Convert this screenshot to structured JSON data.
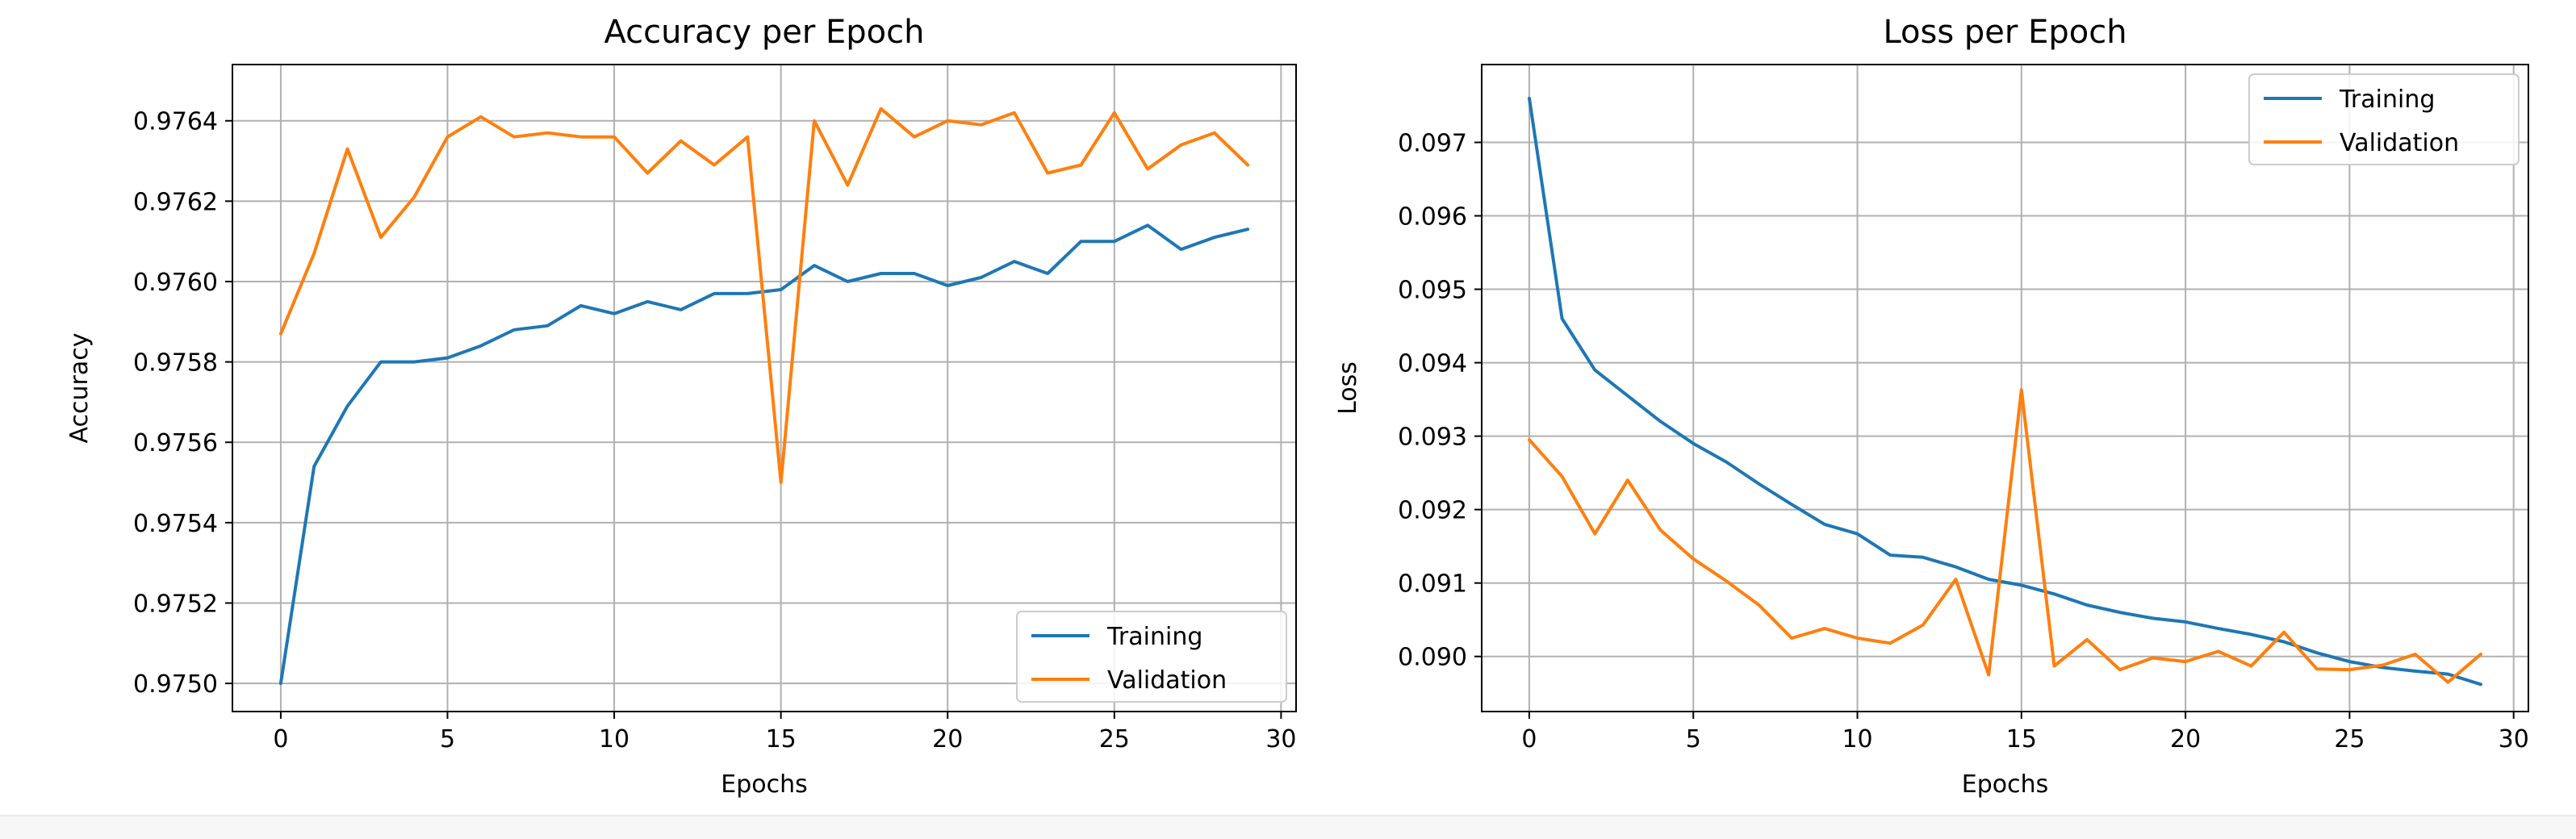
{
  "chart_data": [
    {
      "type": "line",
      "title": "Accuracy per Epoch",
      "xlabel": "Epochs",
      "ylabel": "Accuracy",
      "xlim": [
        -1.45,
        30.45
      ],
      "ylim": [
        0.97493,
        0.97654
      ],
      "xticks": [
        0,
        5,
        10,
        15,
        20,
        25,
        30
      ],
      "xtick_labels": [
        "0",
        "5",
        "10",
        "15",
        "20",
        "25",
        "30"
      ],
      "yticks": [
        0.975,
        0.9752,
        0.9754,
        0.9756,
        0.9758,
        0.976,
        0.9762,
        0.9764
      ],
      "ytick_labels": [
        "0.9750",
        "0.9752",
        "0.9754",
        "0.9756",
        "0.9758",
        "0.9760",
        "0.9762",
        "0.9764"
      ],
      "grid": true,
      "legend_position": "lower-right",
      "x": [
        0,
        1,
        2,
        3,
        4,
        5,
        6,
        7,
        8,
        9,
        10,
        11,
        12,
        13,
        14,
        15,
        16,
        17,
        18,
        19,
        20,
        21,
        22,
        23,
        24,
        25,
        26,
        27,
        28,
        29
      ],
      "series": [
        {
          "name": "Training",
          "color": "#1f77b4",
          "values": [
            0.975,
            0.97554,
            0.97569,
            0.9758,
            0.9758,
            0.97581,
            0.97584,
            0.97588,
            0.97589,
            0.97594,
            0.97592,
            0.97595,
            0.97593,
            0.97597,
            0.97597,
            0.97598,
            0.97604,
            0.976,
            0.97602,
            0.97602,
            0.97599,
            0.97601,
            0.97605,
            0.97602,
            0.9761,
            0.9761,
            0.97614,
            0.97608,
            0.97611,
            0.97613
          ]
        },
        {
          "name": "Validation",
          "color": "#ff7f0e",
          "values": [
            0.97587,
            0.97607,
            0.97633,
            0.97611,
            0.97621,
            0.97636,
            0.97641,
            0.97636,
            0.97637,
            0.97636,
            0.97636,
            0.97627,
            0.97635,
            0.97629,
            0.97636,
            0.9755,
            0.9764,
            0.97624,
            0.97643,
            0.97636,
            0.9764,
            0.97639,
            0.97642,
            0.97627,
            0.97629,
            0.97642,
            0.97628,
            0.97634,
            0.97637,
            0.97629
          ]
        }
      ]
    },
    {
      "type": "line",
      "title": "Loss per Epoch",
      "xlabel": "Epochs",
      "ylabel": "Loss",
      "xlim": [
        -1.45,
        30.45
      ],
      "ylim": [
        0.08925,
        0.09806
      ],
      "xticks": [
        0,
        5,
        10,
        15,
        20,
        25,
        30
      ],
      "xtick_labels": [
        "0",
        "5",
        "10",
        "15",
        "20",
        "25",
        "30"
      ],
      "yticks": [
        0.09,
        0.091,
        0.092,
        0.093,
        0.094,
        0.095,
        0.096,
        0.097
      ],
      "ytick_labels": [
        "0.090",
        "0.091",
        "0.092",
        "0.093",
        "0.094",
        "0.095",
        "0.096",
        "0.097"
      ],
      "grid": true,
      "legend_position": "upper-right",
      "x": [
        0,
        1,
        2,
        3,
        4,
        5,
        6,
        7,
        8,
        9,
        10,
        11,
        12,
        13,
        14,
        15,
        16,
        17,
        18,
        19,
        20,
        21,
        22,
        23,
        24,
        25,
        26,
        27,
        28,
        29
      ],
      "series": [
        {
          "name": "Training",
          "color": "#1f77b4",
          "values": [
            0.0976,
            0.0946,
            0.0939,
            0.09355,
            0.0932,
            0.0929,
            0.09265,
            0.09235,
            0.09207,
            0.0918,
            0.09167,
            0.09138,
            0.09135,
            0.09122,
            0.09105,
            0.09097,
            0.09085,
            0.0907,
            0.0906,
            0.09052,
            0.09047,
            0.09038,
            0.0903,
            0.0902,
            0.09005,
            0.08993,
            0.08985,
            0.0898,
            0.08976,
            0.08962
          ]
        },
        {
          "name": "Validation",
          "color": "#ff7f0e",
          "values": [
            0.09295,
            0.09245,
            0.09167,
            0.0924,
            0.09172,
            0.09133,
            0.09103,
            0.0907,
            0.09025,
            0.09038,
            0.09025,
            0.09018,
            0.09043,
            0.09105,
            0.08975,
            0.09363,
            0.08987,
            0.09023,
            0.08982,
            0.08998,
            0.08993,
            0.09007,
            0.08987,
            0.09033,
            0.08983,
            0.08982,
            0.08988,
            0.09003,
            0.08965,
            0.09003
          ]
        }
      ]
    }
  ]
}
